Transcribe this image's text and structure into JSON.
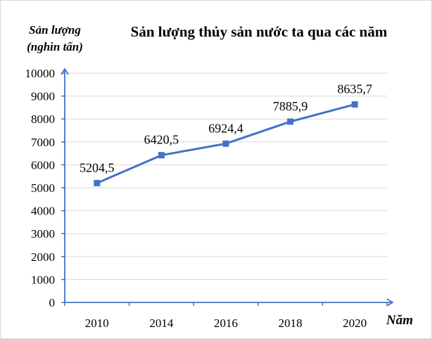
{
  "chart_data": {
    "type": "line",
    "title": "Sản lượng thủy sản nước ta qua các năm",
    "ylabel_line1": "Sản lượng",
    "ylabel_line2": "(nghìn tấn)",
    "xlabel": "Năm",
    "categories": [
      "2010",
      "2014",
      "2016",
      "2018",
      "2020"
    ],
    "values": [
      5204.5,
      6420.5,
      6924.4,
      7885.9,
      8635.7
    ],
    "value_labels": [
      "5204,5",
      "6420,5",
      "6924,4",
      "7885,9",
      "8635,7"
    ],
    "ylim": [
      0,
      10000
    ],
    "yticks": [
      0,
      1000,
      2000,
      3000,
      4000,
      5000,
      6000,
      7000,
      8000,
      9000,
      10000
    ],
    "grid": true,
    "line_color": "#4472c4",
    "axis_color": "#4472c4",
    "grid_color": "#d9d9d9"
  }
}
